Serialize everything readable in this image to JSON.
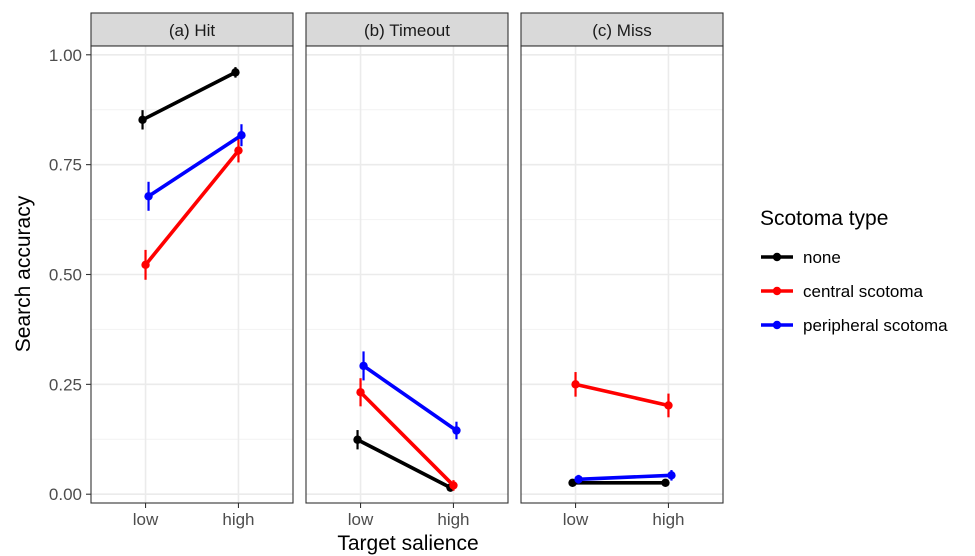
{
  "chart_data": {
    "type": "line",
    "ylabel": "Search accuracy",
    "xlabel": "Target salience",
    "categories": [
      "low",
      "high"
    ],
    "ylim": [
      -0.02,
      1.02
    ],
    "yticks": [
      0.0,
      0.25,
      0.5,
      0.75,
      1.0
    ],
    "ytick_labels": [
      "0.00",
      "0.25",
      "0.50",
      "0.75",
      "1.00"
    ],
    "grid": true,
    "legend": {
      "title": "Scotoma type",
      "placement": "right",
      "entries": [
        "none",
        "central scotoma",
        "peripheral scotoma"
      ]
    },
    "colors": {
      "none": "#000000",
      "central scotoma": "#ff0000",
      "peripheral scotoma": "#0000ff"
    },
    "panels": [
      {
        "title": "(a) Hit",
        "series": [
          {
            "name": "none",
            "values": [
              0.852,
              0.96
            ],
            "error_low": [
              0.83,
              0.948
            ],
            "error_high": [
              0.874,
              0.972
            ]
          },
          {
            "name": "central scotoma",
            "values": [
              0.522,
              0.782
            ],
            "error_low": [
              0.488,
              0.755
            ],
            "error_high": [
              0.556,
              0.809
            ]
          },
          {
            "name": "peripheral scotoma",
            "values": [
              0.678,
              0.817
            ],
            "error_low": [
              0.645,
              0.792
            ],
            "error_high": [
              0.711,
              0.842
            ]
          }
        ]
      },
      {
        "title": "(b) Timeout",
        "series": [
          {
            "name": "none",
            "values": [
              0.124,
              0.015
            ],
            "error_low": [
              0.102,
              0.006
            ],
            "error_high": [
              0.146,
              0.024
            ]
          },
          {
            "name": "central scotoma",
            "values": [
              0.232,
              0.02
            ],
            "error_low": [
              0.2,
              0.008
            ],
            "error_high": [
              0.264,
              0.032
            ]
          },
          {
            "name": "peripheral scotoma",
            "values": [
              0.292,
              0.145
            ],
            "error_low": [
              0.259,
              0.125
            ],
            "error_high": [
              0.325,
              0.165
            ]
          }
        ]
      },
      {
        "title": "(c) Miss",
        "series": [
          {
            "name": "none",
            "values": [
              0.026,
              0.026
            ],
            "error_low": [
              0.018,
              0.018
            ],
            "error_high": [
              0.034,
              0.034
            ]
          },
          {
            "name": "central scotoma",
            "values": [
              0.25,
              0.202
            ],
            "error_low": [
              0.222,
              0.175
            ],
            "error_high": [
              0.278,
              0.229
            ]
          },
          {
            "name": "peripheral scotoma",
            "values": [
              0.034,
              0.043
            ],
            "error_low": [
              0.024,
              0.031
            ],
            "error_high": [
              0.044,
              0.055
            ]
          }
        ]
      }
    ]
  }
}
